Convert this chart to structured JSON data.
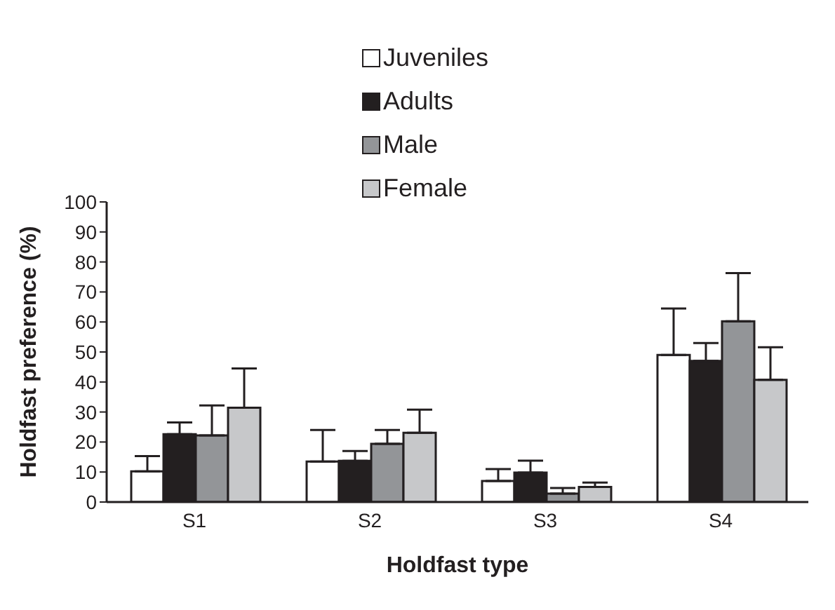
{
  "chart_data": {
    "type": "bar",
    "xlabel": "Holdfast type",
    "ylabel": "Holdfast preference (%)",
    "categories": [
      "S1",
      "S2",
      "S3",
      "S4"
    ],
    "series": [
      {
        "name": "Juveniles",
        "color": "#ffffff",
        "values": [
          10.2,
          13.5,
          7,
          49
        ],
        "errors": [
          [
            10.2,
            15.3
          ],
          [
            13.5,
            24
          ],
          [
            7,
            11
          ],
          [
            49,
            64.5
          ]
        ]
      },
      {
        "name": "Adults",
        "color": "#231f20",
        "values": [
          22.6,
          13.7,
          9.8,
          47
        ],
        "errors": [
          [
            22.6,
            26.5
          ],
          [
            13.7,
            17
          ],
          [
            9.8,
            13.8
          ],
          [
            47,
            53
          ]
        ]
      },
      {
        "name": "Male",
        "color": "#939598",
        "values": [
          22.2,
          19.4,
          2.8,
          60.2
        ],
        "errors": [
          [
            22.2,
            32.2
          ],
          [
            19.4,
            24
          ],
          [
            2.8,
            4.7
          ],
          [
            60.2,
            76.3
          ]
        ]
      },
      {
        "name": "Female",
        "color": "#c7c8ca",
        "values": [
          31.4,
          23.1,
          5,
          40.7
        ],
        "errors": [
          [
            31.4,
            44.5
          ],
          [
            23.1,
            30.8
          ],
          [
            5,
            6.5
          ],
          [
            40.7,
            51.6
          ]
        ]
      }
    ],
    "ylim": [
      0,
      100
    ],
    "yticks": [
      0,
      10,
      20,
      30,
      40,
      50,
      60,
      70,
      80,
      90,
      100
    ],
    "grid": false,
    "legend": "top"
  }
}
